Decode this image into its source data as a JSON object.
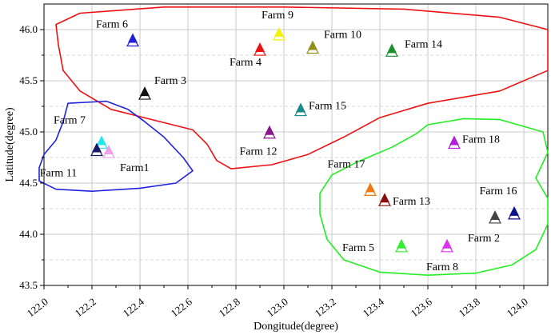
{
  "chart_data": {
    "type": "scatter",
    "title": "",
    "xlabel": "Dongitude(degree)",
    "ylabel": "Latitude(degree)",
    "xlim": [
      122.0,
      124.1
    ],
    "ylim": [
      43.5,
      46.25
    ],
    "xticks": [
      "122.0",
      "122.2",
      "122.4",
      "122.6",
      "122.8",
      "123.0",
      "123.2",
      "123.4",
      "123.6",
      "123.8",
      "124.0"
    ],
    "yticks": [
      "43.5",
      "44.0",
      "44.5",
      "45.0",
      "45.5",
      "46.0"
    ],
    "grid": true,
    "marker": "triangle",
    "farms": [
      {
        "name": "Farm 6",
        "x": 122.37,
        "y": 45.91,
        "color": "#1f1fd6"
      },
      {
        "name": "Farm 9",
        "x": 122.98,
        "y": 45.97,
        "color": "#f2f20a"
      },
      {
        "name": "Farm 10",
        "x": 123.12,
        "y": 45.84,
        "color": "#8f8f1a"
      },
      {
        "name": "Farm 4",
        "x": 122.9,
        "y": 45.82,
        "color": "#ee1111"
      },
      {
        "name": "Farm 14",
        "x": 123.45,
        "y": 45.81,
        "color": "#1f8f2e"
      },
      {
        "name": "Farm 3",
        "x": 122.42,
        "y": 45.39,
        "color": "#111111"
      },
      {
        "name": "Farm 15",
        "x": 123.07,
        "y": 45.23,
        "color": "#1a8a8a"
      },
      {
        "name": "Farm 12",
        "x": 122.94,
        "y": 45.01,
        "color": "#8a168a"
      },
      {
        "name": "Farm 7",
        "x": 122.24,
        "y": 44.91,
        "color": "#22e8ee"
      },
      {
        "name": "Farm 11",
        "x": 122.22,
        "y": 44.84,
        "color": "#1a1a66"
      },
      {
        "name": "Farm1",
        "x": 122.27,
        "y": 44.82,
        "color": "#f0a0e8"
      },
      {
        "name": "Farm 18",
        "x": 123.71,
        "y": 44.91,
        "color": "#b020d8"
      },
      {
        "name": "Farm 17",
        "x": 123.36,
        "y": 44.45,
        "color": "#f07a10"
      },
      {
        "name": "Farm 13",
        "x": 123.42,
        "y": 44.35,
        "color": "#880e0e"
      },
      {
        "name": "Farm 16",
        "x": 123.96,
        "y": 44.22,
        "color": "#10108a"
      },
      {
        "name": "Farm 2",
        "x": 123.88,
        "y": 44.18,
        "color": "#444444"
      },
      {
        "name": "Farm 5",
        "x": 123.49,
        "y": 43.9,
        "color": "#33ee33"
      },
      {
        "name": "Farm 8",
        "x": 123.68,
        "y": 43.9,
        "color": "#dd33ee"
      }
    ],
    "regions": [
      {
        "color": "#ee1111",
        "points": [
          [
            122.05,
            46.05
          ],
          [
            122.15,
            46.16
          ],
          [
            122.5,
            46.22
          ],
          [
            123.0,
            46.22
          ],
          [
            123.5,
            46.2
          ],
          [
            123.9,
            46.12
          ],
          [
            124.1,
            46.0
          ],
          [
            124.1,
            45.6
          ],
          [
            123.9,
            45.4
          ],
          [
            123.6,
            45.28
          ],
          [
            123.4,
            45.14
          ],
          [
            123.25,
            44.95
          ],
          [
            123.1,
            44.78
          ],
          [
            122.95,
            44.68
          ],
          [
            122.78,
            44.64
          ],
          [
            122.72,
            44.72
          ],
          [
            122.68,
            44.88
          ],
          [
            122.62,
            45.02
          ],
          [
            122.45,
            45.12
          ],
          [
            122.28,
            45.22
          ],
          [
            122.15,
            45.4
          ],
          [
            122.08,
            45.6
          ],
          [
            122.06,
            45.85
          ]
        ]
      },
      {
        "color": "#2222dd",
        "points": [
          [
            122.1,
            45.28
          ],
          [
            122.26,
            45.3
          ],
          [
            122.35,
            45.22
          ],
          [
            122.42,
            45.1
          ],
          [
            122.5,
            44.95
          ],
          [
            122.58,
            44.75
          ],
          [
            122.62,
            44.62
          ],
          [
            122.55,
            44.5
          ],
          [
            122.4,
            44.45
          ],
          [
            122.2,
            44.42
          ],
          [
            122.05,
            44.44
          ],
          [
            121.98,
            44.52
          ],
          [
            121.98,
            44.65
          ],
          [
            122.0,
            44.78
          ],
          [
            122.05,
            44.92
          ],
          [
            122.08,
            45.1
          ]
        ]
      },
      {
        "color": "#22ee22",
        "points": [
          [
            123.2,
            44.58
          ],
          [
            123.3,
            44.7
          ],
          [
            123.45,
            44.85
          ],
          [
            123.55,
            44.98
          ],
          [
            123.6,
            45.07
          ],
          [
            123.75,
            45.13
          ],
          [
            123.9,
            45.12
          ],
          [
            124.08,
            45.0
          ],
          [
            124.1,
            44.8
          ],
          [
            124.05,
            44.55
          ],
          [
            124.1,
            44.35
          ],
          [
            124.1,
            44.1
          ],
          [
            124.05,
            43.85
          ],
          [
            123.95,
            43.7
          ],
          [
            123.8,
            43.62
          ],
          [
            123.6,
            43.6
          ],
          [
            123.4,
            43.63
          ],
          [
            123.25,
            43.75
          ],
          [
            123.18,
            43.95
          ],
          [
            123.15,
            44.2
          ],
          [
            123.15,
            44.4
          ]
        ]
      }
    ]
  }
}
